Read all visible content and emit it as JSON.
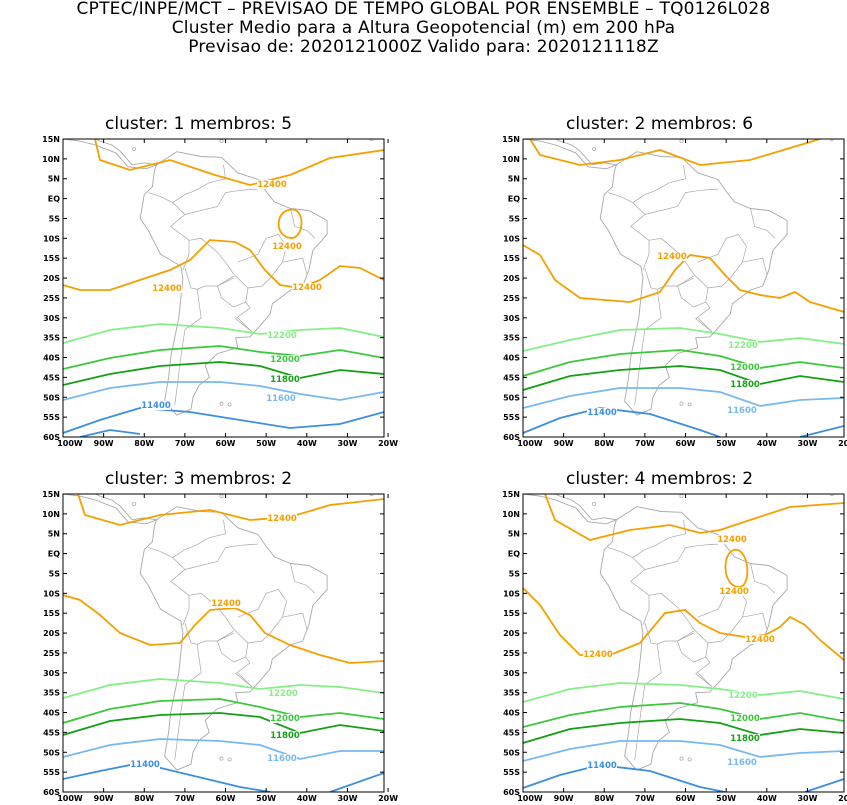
{
  "header": {
    "line1": "CPTEC/INPE/MCT – PREVISAO DE TEMPO GLOBAL POR ENSEMBLE – TQ0126L028",
    "line2": "Cluster Medio para a Altura Geopotencial (m) em 200 hPa",
    "line3": "Previsao de: 2020121000Z    Valido para: 2020121118Z"
  },
  "axes": {
    "lat_labels": [
      "15N",
      "10N",
      "5N",
      "EQ",
      "5S",
      "10S",
      "15S",
      "20S",
      "25S",
      "30S",
      "35S",
      "40S",
      "45S",
      "50S",
      "55S",
      "60S"
    ],
    "lon_labels": [
      "100W",
      "90W",
      "80W",
      "70W",
      "60W",
      "50W",
      "40W",
      "30W",
      "20W"
    ]
  },
  "colors": {
    "c12400": "#f5a000",
    "c12200": "#86ee86",
    "c12000": "#3cc83c",
    "c11800": "#14a014",
    "c11600": "#78b8f0",
    "c11400": "#3c8ee0",
    "map": "#a8a8a8"
  },
  "panels": [
    {
      "title": "cluster: 1   membros: 5",
      "labels": [
        "12400",
        "12400",
        "12400",
        "12400",
        "12200",
        "12000",
        "11800",
        "11600",
        "11400"
      ]
    },
    {
      "title": "cluster: 2   membros: 6",
      "labels": [
        "12400",
        "12200",
        "12000",
        "11800",
        "11600",
        "11400"
      ]
    },
    {
      "title": "cluster: 3   membros: 2",
      "labels": [
        "12400",
        "12400",
        "12200",
        "12000",
        "11800",
        "11600",
        "11400"
      ]
    },
    {
      "title": "cluster: 4   membros: 2",
      "labels": [
        "12400",
        "12400",
        "12400",
        "12400",
        "12200",
        "12000",
        "11800",
        "11600",
        "11400"
      ]
    }
  ]
}
